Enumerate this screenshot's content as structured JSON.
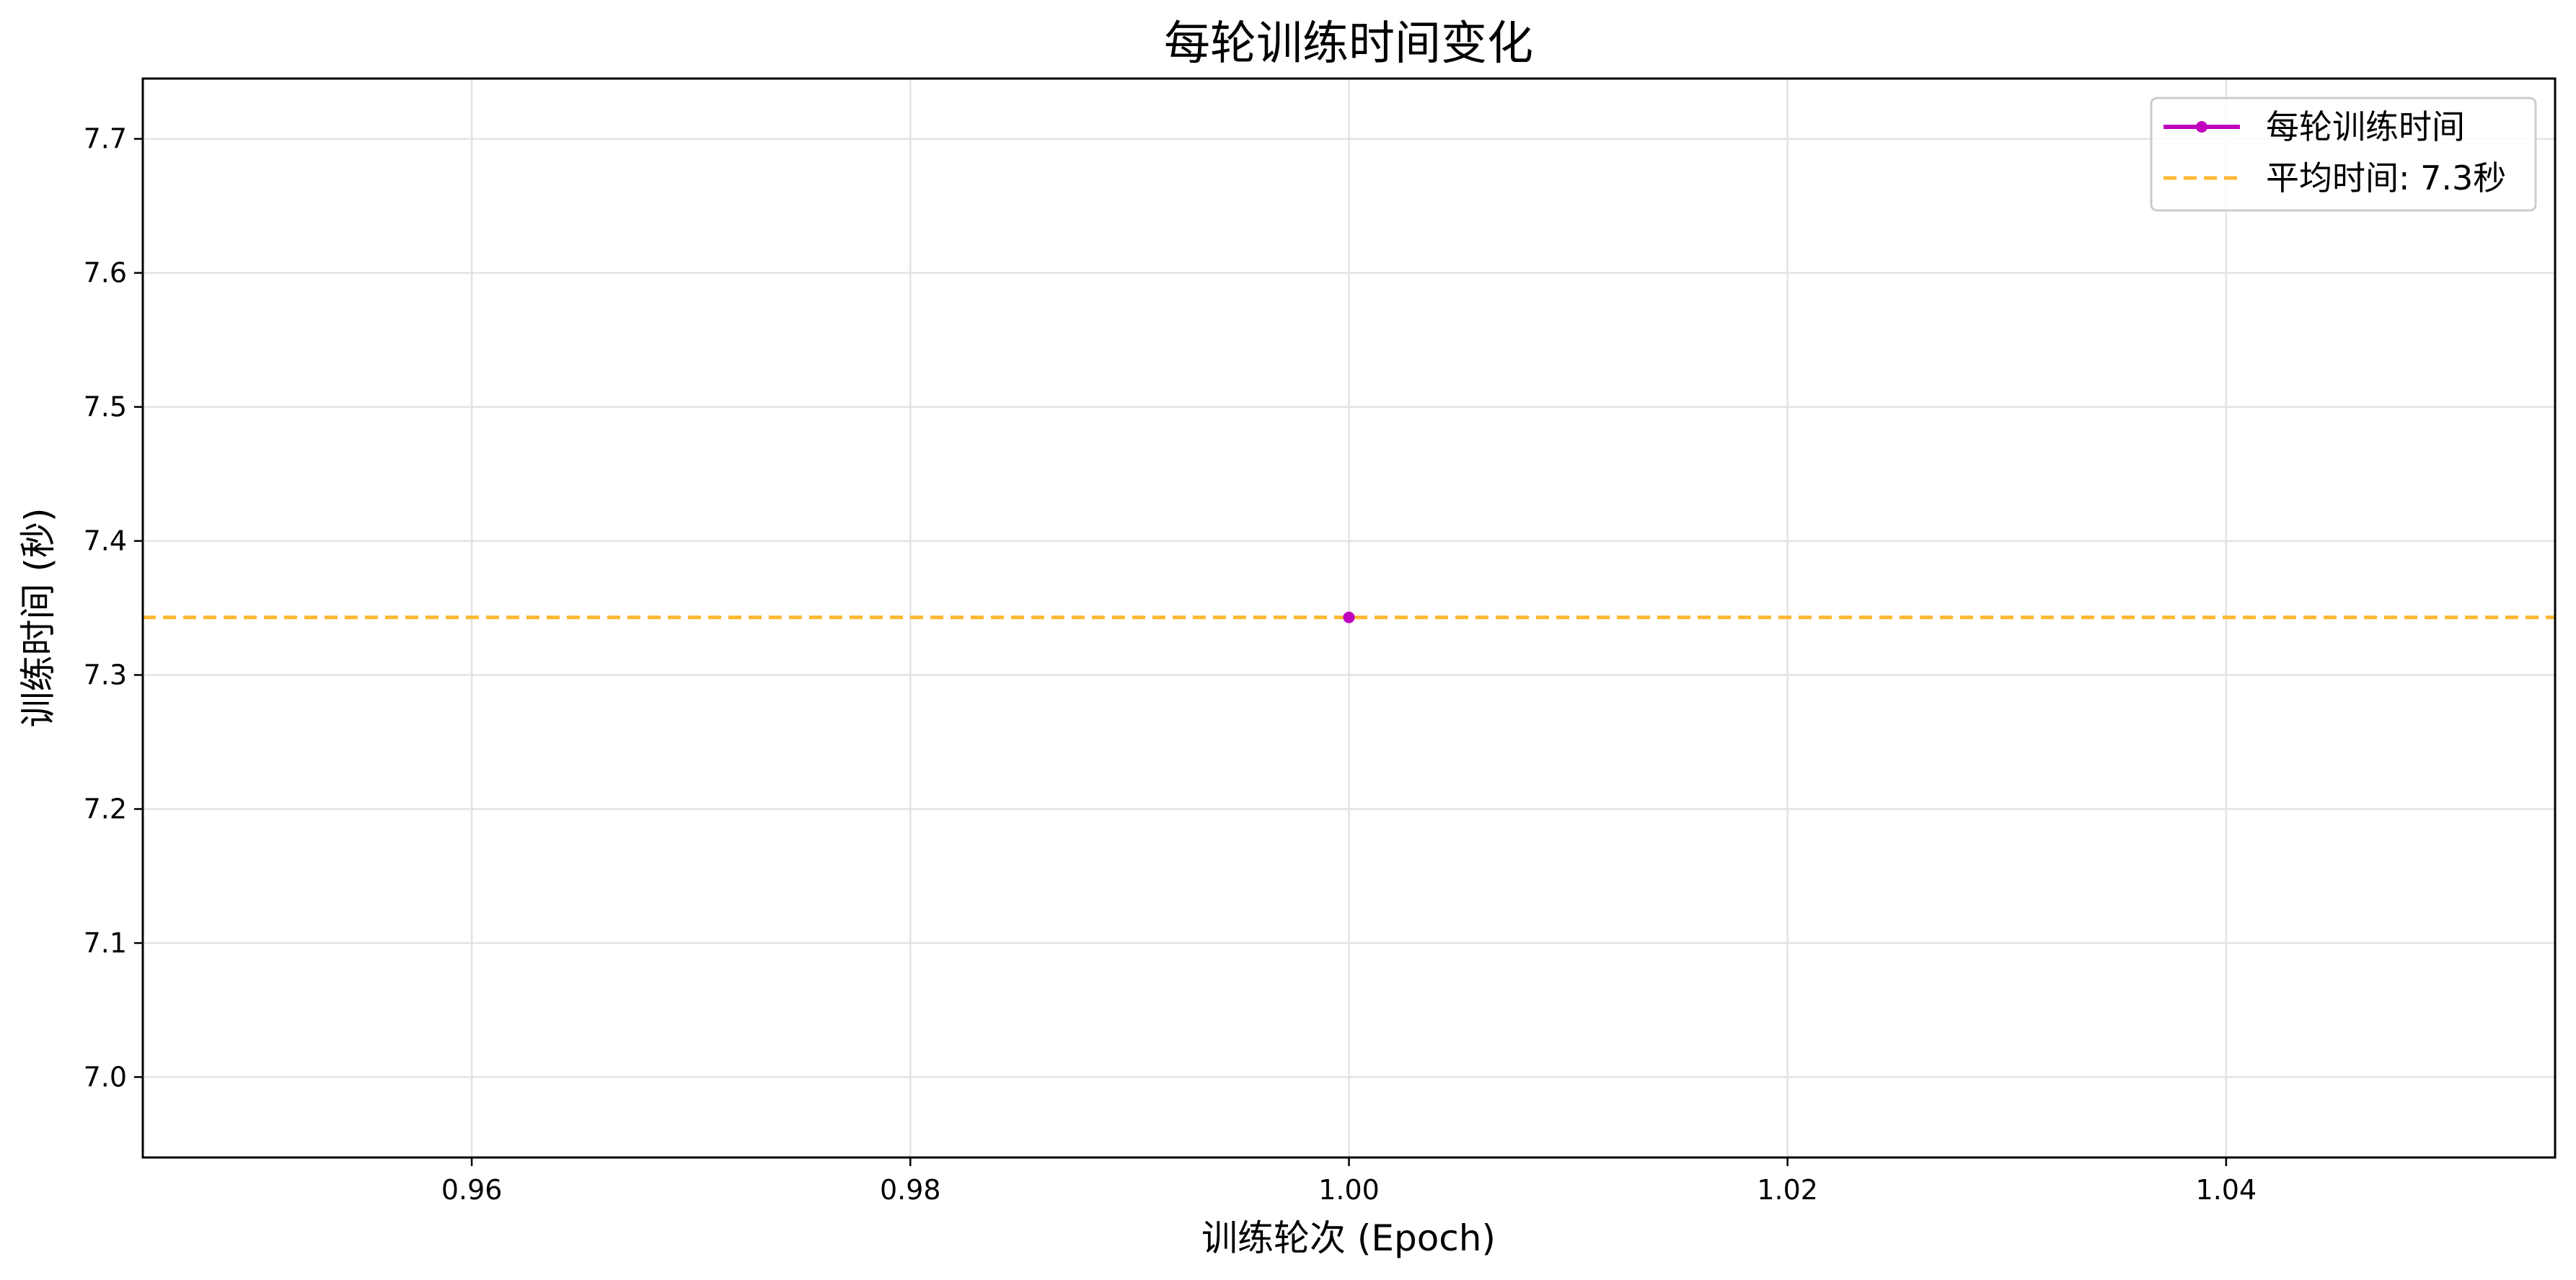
{
  "chart_data": {
    "type": "line",
    "title": "每轮训练时间变化",
    "xlabel": "训练轮次 (Epoch)",
    "ylabel": "训练时间 (秒)",
    "xlim": [
      0.945,
      1.055
    ],
    "ylim": [
      6.94,
      7.745
    ],
    "xticks": [
      0.96,
      0.98,
      1.0,
      1.02,
      1.04
    ],
    "xtick_labels": [
      "0.96",
      "0.98",
      "1.00",
      "1.02",
      "1.04"
    ],
    "yticks": [
      7.0,
      7.1,
      7.2,
      7.3,
      7.4,
      7.5,
      7.6,
      7.7
    ],
    "ytick_labels": [
      "7.0",
      "7.1",
      "7.2",
      "7.3",
      "7.4",
      "7.5",
      "7.6",
      "7.7"
    ],
    "grid": true,
    "legend_position": "top-right",
    "series": [
      {
        "name": "每轮训练时间",
        "kind": "line-marker",
        "color": "#bf00bf",
        "x": [
          1.0
        ],
        "y": [
          7.343
        ]
      },
      {
        "name": "平均时间: 7.3秒",
        "kind": "hline-dashed",
        "color": "#ffb833",
        "y": 7.343
      }
    ]
  }
}
